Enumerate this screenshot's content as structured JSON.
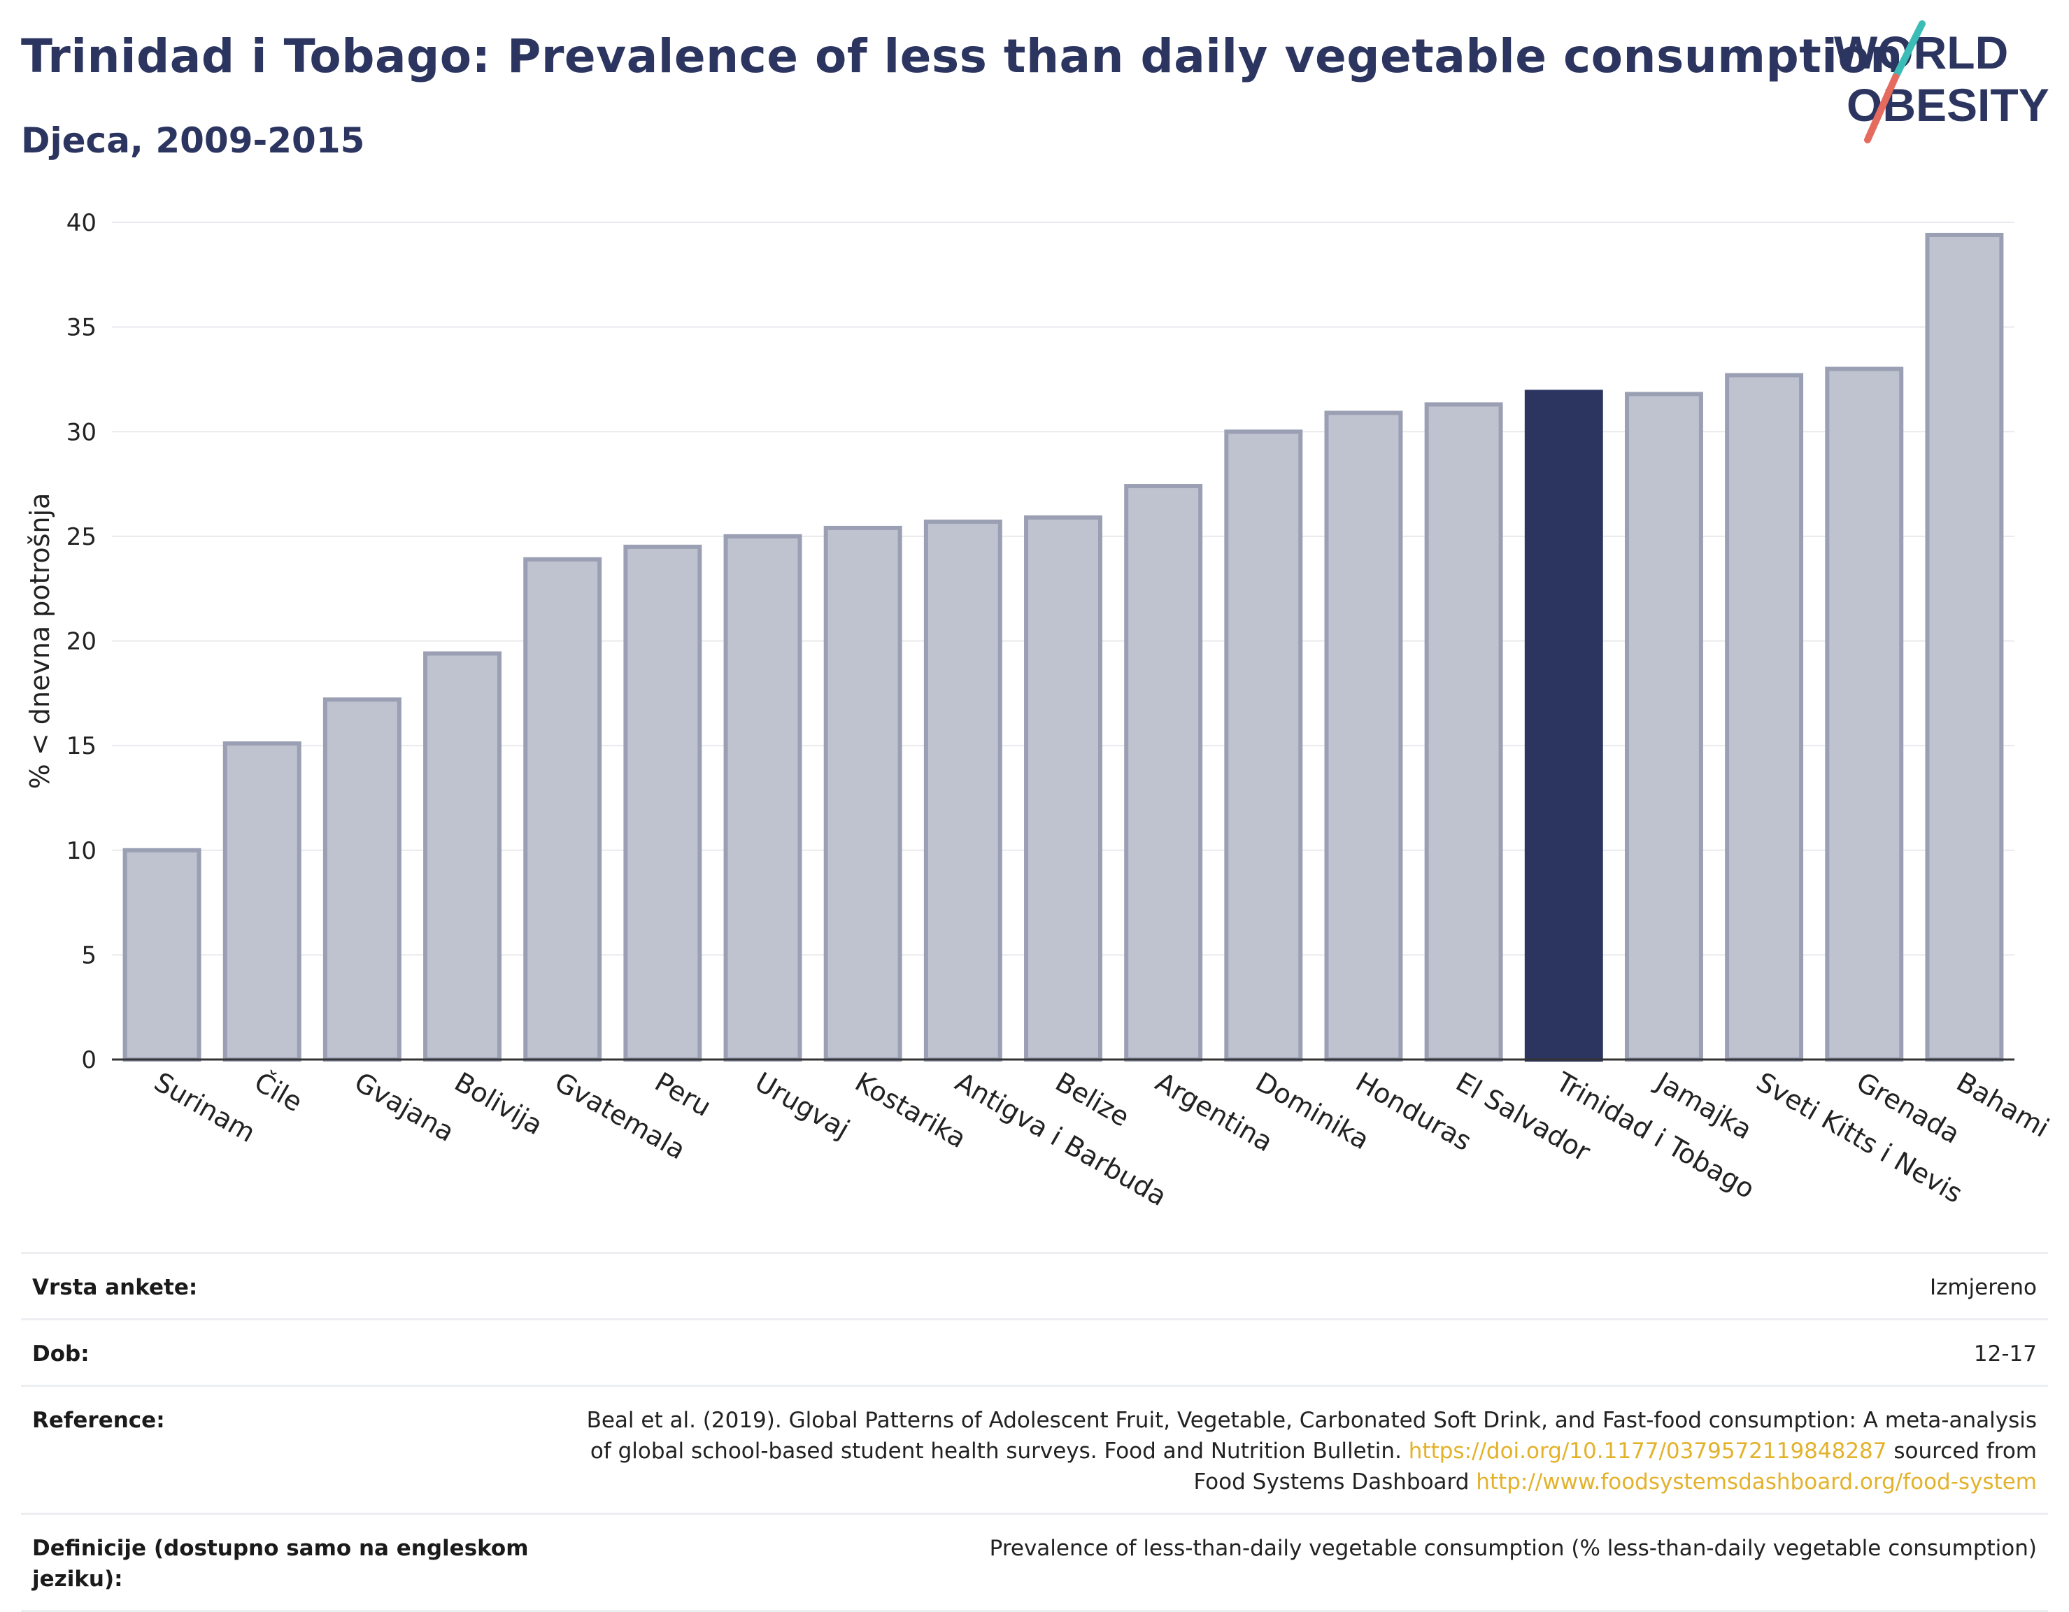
{
  "header": {
    "title": "Trinidad i Tobago: Prevalence of less than daily vegetable consumption",
    "subtitle": "Djeca, 2009-2015"
  },
  "logo": {
    "line1": "WORLD",
    "line2": "OBESITY"
  },
  "colors": {
    "bar_default": "#bfc3cf",
    "bar_default_stroke": "#9a9fb3",
    "bar_highlight": "#2c3560",
    "title": "#2c3560",
    "link": "#e3b22b",
    "logo_teal": "#3cbcb6",
    "logo_coral": "#e46b5d"
  },
  "chart_data": {
    "type": "bar",
    "ylabel": "% < dnevna potrošnja",
    "ylim": [
      0,
      40
    ],
    "yticks": [
      0,
      5,
      10,
      15,
      20,
      25,
      30,
      35,
      40
    ],
    "grid": true,
    "highlight": "Trinidad i Tobago",
    "categories": [
      "Surinam",
      "Čile",
      "Gvajana",
      "Bolivija",
      "Gvatemala",
      "Peru",
      "Urugvaj",
      "Kostarika",
      "Antigva i Barbuda",
      "Belize",
      "Argentina",
      "Dominika",
      "Honduras",
      "El Salvador",
      "Trinidad i Tobago",
      "Jamajka",
      "Sveti Kitts i Nevis",
      "Grenada",
      "Bahami"
    ],
    "values": [
      10.0,
      15.1,
      17.2,
      19.4,
      23.9,
      24.5,
      25.0,
      25.4,
      25.7,
      25.9,
      27.4,
      30.0,
      30.9,
      31.3,
      31.9,
      31.8,
      32.7,
      33.0,
      39.4
    ]
  },
  "meta": {
    "survey_label": "Vrsta ankete:",
    "survey_value": "Izmjereno",
    "age_label": "Dob:",
    "age_value": "12-17",
    "reference_label": "Reference:",
    "reference_text_1": "Beal et al. (2019). Global Patterns of Adolescent Fruit, Vegetable, Carbonated Soft Drink, and Fast-food consumption: A meta-analysis of global school-based student health surveys. Food and Nutrition Bulletin.",
    "reference_link_1": "https://doi.org/10.1177/0379572119848287",
    "reference_text_2": "sourced from Food Systems Dashboard",
    "reference_link_2": "http://www.foodsystemsdashboard.org/food-system",
    "definition_label": "Definicije (dostupno samo na engleskom jeziku):",
    "definition_value": "Prevalence of less-than-daily vegetable consumption (% less-than-daily vegetable consumption)"
  }
}
